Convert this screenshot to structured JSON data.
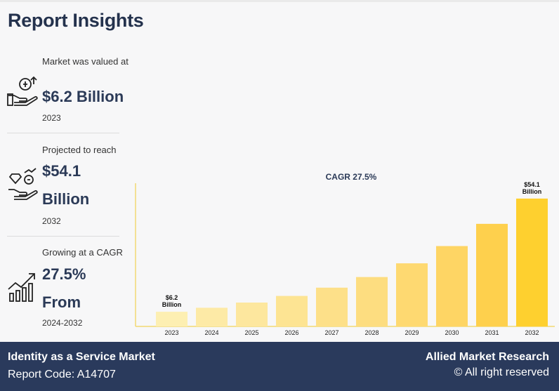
{
  "header": {
    "title": "Report Insights"
  },
  "stats": [
    {
      "label": "Market was valued at",
      "value": "$6.2 Billion",
      "year": "2023",
      "icon": "money-hand-icon"
    },
    {
      "label": "Projected to reach",
      "value_line1": "$54.1",
      "value_line2": "Billion",
      "year": "2032",
      "icon": "diamond-coin-hand-icon"
    },
    {
      "label": "Growing at a CAGR",
      "value_line1": "27.5%",
      "value_line2": "From",
      "year": "2024-2032",
      "icon": "growth-chart-icon"
    }
  ],
  "chart_data": {
    "type": "bar",
    "title": "CAGR 27.5%",
    "categories": [
      "2023",
      "2024",
      "2025",
      "2026",
      "2027",
      "2028",
      "2029",
      "2030",
      "2031",
      "2032"
    ],
    "values": [
      6.2,
      7.9,
      10.1,
      12.9,
      16.4,
      20.9,
      26.7,
      34.0,
      43.4,
      54.1
    ],
    "annotations": [
      {
        "category": "2023",
        "text": [
          "$6.2",
          "Billion"
        ]
      },
      {
        "category": "2032",
        "text": [
          "$54.1",
          "Billion"
        ]
      }
    ],
    "colors": [
      "#fdefb2",
      "#fdeaa6",
      "#fde79e",
      "#fde493",
      "#fde089",
      "#fddd80",
      "#fed971",
      "#fed564",
      "#fed04d",
      "#fed02f"
    ],
    "ylim": [
      0,
      60
    ],
    "xlabel": "",
    "ylabel": "",
    "axis_color": "#f2d873"
  },
  "footer": {
    "market": "Identity as a Service Market",
    "code": "Report Code: A14707",
    "brand": "Allied Market Research",
    "rights": "© All right reserved"
  }
}
